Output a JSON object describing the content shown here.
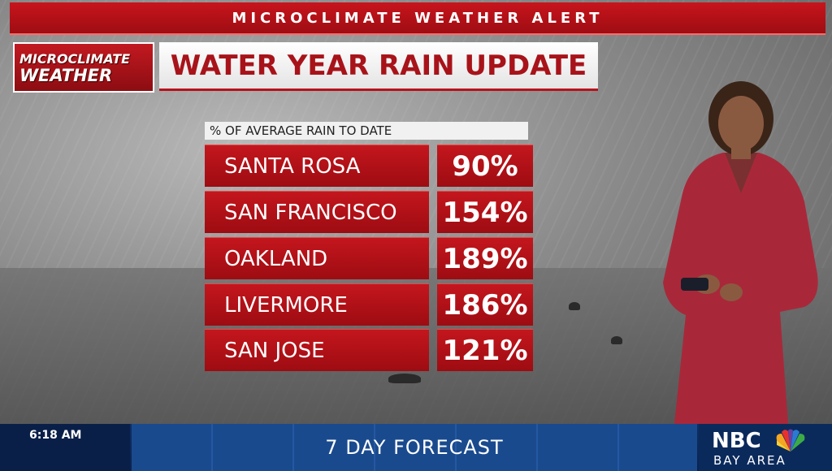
{
  "banner": {
    "text": "MICROCLIMATE WEATHER ALERT"
  },
  "logo": {
    "line1": "MICROCLIMATE",
    "line2": "WEATHER"
  },
  "title": "WATER YEAR RAIN UPDATE",
  "subtitle": "% OF AVERAGE RAIN TO DATE",
  "rows": [
    {
      "city": "SANTA ROSA",
      "percent": "90%"
    },
    {
      "city": "SAN FRANCISCO",
      "percent": "154%"
    },
    {
      "city": "OAKLAND",
      "percent": "189%"
    },
    {
      "city": "LIVERMORE",
      "percent": "186%"
    },
    {
      "city": "SAN JOSE",
      "percent": "121%"
    }
  ],
  "bottom": {
    "time": "6:18 AM",
    "forecast": "7 DAY FORECAST",
    "network": "NBC",
    "region": "BAY AREA"
  },
  "colors": {
    "accent_red": "#b7121a",
    "bottom_blue": "#0f2f66"
  }
}
